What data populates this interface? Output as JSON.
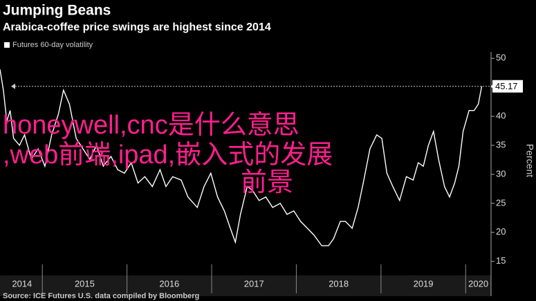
{
  "chart_data": {
    "type": "line",
    "title": "Jumping Beans",
    "subtitle": "Arabica-coffee price swings are highest since 2014",
    "y_label": "Percent",
    "source": "Source: ICE Futures U.S. data compiled by Bloomberg",
    "overlay_text": [
      "honeywell,cnc是什么意思",
      ",web前端,ipad,嵌入式的发展",
      "前景"
    ],
    "legend_position": "top-left",
    "xlim": [
      2014.5,
      2020.3
    ],
    "ylim": [
      13.3,
      51.1
    ],
    "yticks": [
      15,
      20,
      25,
      30,
      35,
      40,
      45,
      50
    ],
    "xticks": [
      {
        "value": 2014.76,
        "label": "2014"
      },
      {
        "value": 2015.5,
        "label": "2015"
      },
      {
        "value": 2016.5,
        "label": "2016"
      },
      {
        "value": 2017.5,
        "label": "2017"
      },
      {
        "value": 2018.5,
        "label": "2018"
      },
      {
        "value": 2019.5,
        "label": "2019"
      },
      {
        "value": 2020.15,
        "label": "2020"
      }
    ],
    "xgrid": [
      2015,
      2016,
      2017,
      2018,
      2019,
      2020
    ],
    "reference_line": {
      "value": 45.17
    },
    "x": [
      2014.5,
      2014.54,
      2014.58,
      2014.62,
      2014.66,
      2014.73,
      2014.79,
      2014.87,
      2014.95,
      2015.03,
      2015.11,
      2015.19,
      2015.25,
      2015.32,
      2015.4,
      2015.48,
      2015.56,
      2015.64,
      2015.72,
      2015.81,
      2015.89,
      2015.97,
      2016.05,
      2016.13,
      2016.21,
      2016.3,
      2016.39,
      2016.46,
      2016.54,
      2016.64,
      2016.72,
      2016.83,
      2016.91,
      2016.99,
      2017.07,
      2017.15,
      2017.22,
      2017.28,
      2017.34,
      2017.42,
      2017.48,
      2017.56,
      2017.64,
      2017.72,
      2017.81,
      2017.89,
      2017.97,
      2018.05,
      2018.13,
      2018.21,
      2018.3,
      2018.38,
      2018.44,
      2018.52,
      2018.58,
      2018.66,
      2018.73,
      2018.79,
      2018.87,
      2018.95,
      2019.01,
      2019.07,
      2019.14,
      2019.22,
      2019.3,
      2019.38,
      2019.44,
      2019.5,
      2019.56,
      2019.62,
      2019.68,
      2019.75,
      2019.81,
      2019.87,
      2019.92,
      2019.97,
      2020.04,
      2020.1,
      2020.15,
      2020.19
    ],
    "series": [
      {
        "name": "Futures 60-day volatility",
        "color": "#ffffff",
        "values": [
          48.1,
          44.5,
          39.2,
          41,
          36.2,
          35,
          36.8,
          32.6,
          34.4,
          31.4,
          36.8,
          40.4,
          44.5,
          42.1,
          36.2,
          34.4,
          32.6,
          35,
          31.4,
          33.1,
          30.8,
          30.2,
          32,
          28.5,
          29.6,
          27.9,
          30.8,
          27.9,
          29.6,
          29,
          26.1,
          24.3,
          27.9,
          30.2,
          26.1,
          23.7,
          20.7,
          18.3,
          23.1,
          27.9,
          27.3,
          25.5,
          26.1,
          24.3,
          25,
          23.1,
          23.7,
          21.9,
          20.7,
          19.5,
          17.7,
          17.7,
          18.9,
          21.9,
          21.9,
          20.7,
          24.3,
          28.5,
          34.4,
          36.8,
          36.2,
          30.2,
          27.9,
          25.5,
          29.6,
          29,
          32,
          31.4,
          35,
          37.4,
          32.6,
          27.9,
          26.1,
          28.5,
          31.4,
          37.4,
          41,
          41,
          42.1,
          45.17
        ]
      }
    ]
  }
}
